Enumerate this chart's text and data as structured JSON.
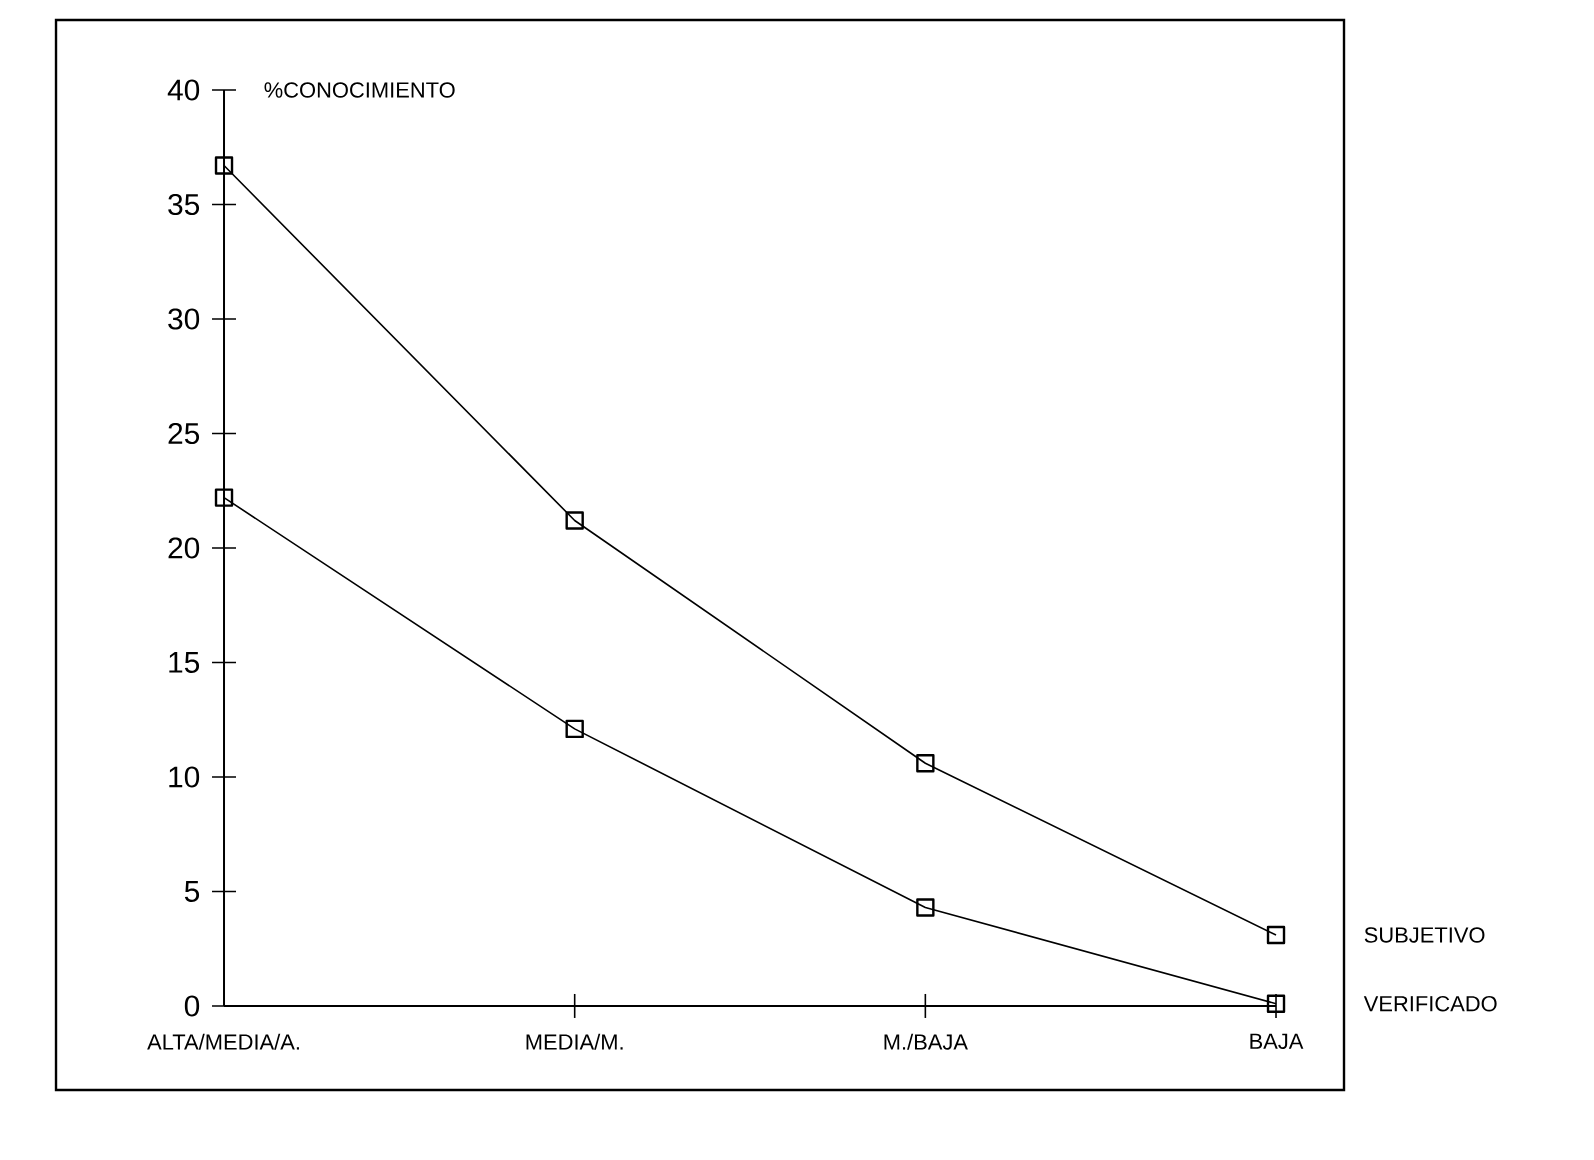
{
  "chart_data": {
    "type": "line",
    "ylabel": "%CONOCIMIENTO",
    "categories": [
      "ALTA/MEDIA/A.",
      "MEDIA/M.",
      "M./BAJA",
      "BAJA"
    ],
    "series": [
      {
        "name": "SUBJETIVO",
        "color": "#000000",
        "values": [
          36.7,
          21.2,
          10.6,
          3.1
        ]
      },
      {
        "name": "VERIFICADO",
        "color": "#000000",
        "values": [
          22.2,
          12.1,
          4.3,
          0.1
        ]
      }
    ],
    "ylim": [
      0,
      40
    ],
    "yticks": [
      0,
      5,
      10,
      15,
      20,
      25,
      30,
      35,
      40
    ],
    "marker": "square",
    "line_style": "solid",
    "grid": false
  }
}
